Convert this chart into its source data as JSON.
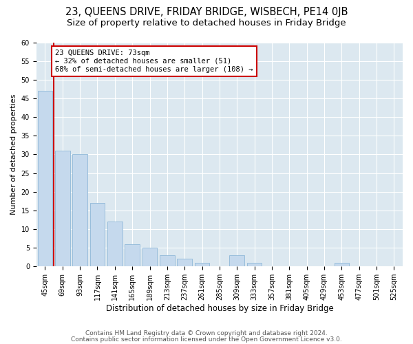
{
  "title1": "23, QUEENS DRIVE, FRIDAY BRIDGE, WISBECH, PE14 0JB",
  "title2": "Size of property relative to detached houses in Friday Bridge",
  "xlabel": "Distribution of detached houses by size in Friday Bridge",
  "ylabel": "Number of detached properties",
  "categories": [
    "45sqm",
    "69sqm",
    "93sqm",
    "117sqm",
    "141sqm",
    "165sqm",
    "189sqm",
    "213sqm",
    "237sqm",
    "261sqm",
    "285sqm",
    "309sqm",
    "333sqm",
    "357sqm",
    "381sqm",
    "405sqm",
    "429sqm",
    "453sqm",
    "477sqm",
    "501sqm",
    "525sqm"
  ],
  "values": [
    47,
    31,
    30,
    17,
    12,
    6,
    5,
    3,
    2,
    1,
    0,
    3,
    1,
    0,
    0,
    0,
    0,
    1,
    0,
    0,
    0
  ],
  "bar_color": "#c5d9ed",
  "bar_edgecolor": "#8fb8d8",
  "vline_color": "#cc0000",
  "vline_x": 0.5,
  "annotation_text": "23 QUEENS DRIVE: 73sqm\n← 32% of detached houses are smaller (51)\n68% of semi-detached houses are larger (108) →",
  "annotation_box_facecolor": "#ffffff",
  "annotation_box_edgecolor": "#cc0000",
  "ylim": [
    0,
    60
  ],
  "yticks": [
    0,
    5,
    10,
    15,
    20,
    25,
    30,
    35,
    40,
    45,
    50,
    55,
    60
  ],
  "background_color": "#dce8f0",
  "footer1": "Contains HM Land Registry data © Crown copyright and database right 2024.",
  "footer2": "Contains public sector information licensed under the Open Government Licence v3.0.",
  "title1_fontsize": 10.5,
  "title2_fontsize": 9.5,
  "xlabel_fontsize": 8.5,
  "ylabel_fontsize": 8,
  "tick_fontsize": 7,
  "annotation_fontsize": 7.5,
  "footer_fontsize": 6.5
}
